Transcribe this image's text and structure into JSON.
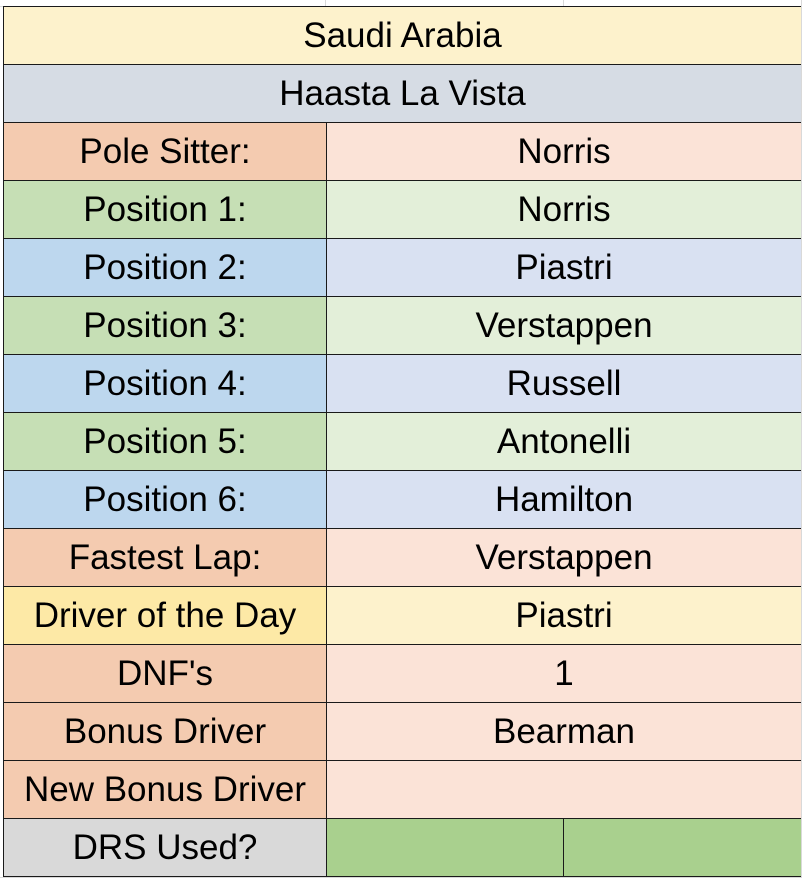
{
  "title": "Saudi Arabia",
  "team": "Haasta La Vista",
  "rows": [
    {
      "label": "Pole Sitter:",
      "value": "Norris"
    },
    {
      "label": "Position 1:",
      "value": "Norris"
    },
    {
      "label": "Position 2:",
      "value": "Piastri"
    },
    {
      "label": "Position 3:",
      "value": "Verstappen"
    },
    {
      "label": "Position 4:",
      "value": "Russell"
    },
    {
      "label": "Position 5:",
      "value": "Antonelli"
    },
    {
      "label": "Position 6:",
      "value": "Hamilton"
    },
    {
      "label": "Fastest Lap:",
      "value": "Verstappen"
    },
    {
      "label": "Driver of the Day",
      "value": "Piastri"
    },
    {
      "label": "DNF's",
      "value": "1"
    },
    {
      "label": "Bonus Driver",
      "value": "Bearman"
    },
    {
      "label": "New Bonus Driver",
      "value": ""
    },
    {
      "label": "DRS Used?",
      "value": ""
    }
  ],
  "colors": {
    "title_bg": "#fdf2cc",
    "team_bg": "#d6dce4",
    "orange_label": "#f4cbb0",
    "orange_value": "#fbe3d7",
    "green_label": "#c6dfb5",
    "green_value": "#e3efd9",
    "blue_label": "#bdd7ee",
    "blue_value": "#d9e1f2",
    "yellow_label": "#fde9a6",
    "yellow_value": "#fdf2cc",
    "grey_label": "#d9d9d9",
    "drs_green": "#a9d08e"
  }
}
